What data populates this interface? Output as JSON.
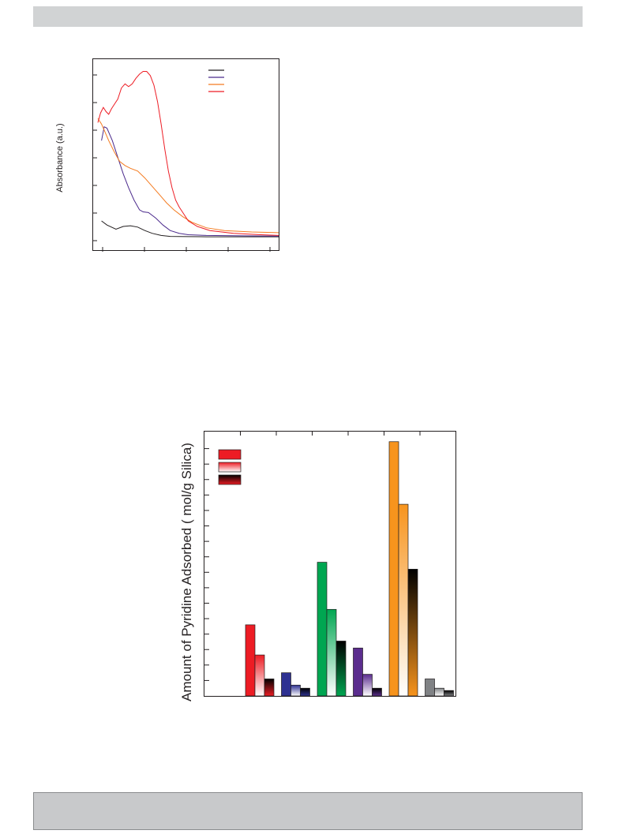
{
  "colors": {
    "axis": "#231f20",
    "header_bar": "#d1d3d4",
    "footer_box": "#c8c9cb"
  },
  "chart_data": [
    {
      "type": "line",
      "ylabel": "Absorbance (a.u.)",
      "xlabel": "",
      "title": "",
      "x_ticks_count": 5,
      "y_ticks_count": 7,
      "legend_placement": "top-right",
      "series": [
        {
          "color": "#231f20",
          "points": [
            [
              0.02,
              0.12
            ],
            [
              0.05,
              0.09
            ],
            [
              0.1,
              0.06
            ],
            [
              0.14,
              0.08
            ],
            [
              0.18,
              0.085
            ],
            [
              0.22,
              0.075
            ],
            [
              0.26,
              0.05
            ],
            [
              0.3,
              0.03
            ],
            [
              0.35,
              0.015
            ],
            [
              0.4,
              0.008
            ],
            [
              0.5,
              0.006
            ],
            [
              0.6,
              0.005
            ],
            [
              0.8,
              0.005
            ],
            [
              1.0,
              0.005
            ]
          ]
        },
        {
          "color": "#4b2a8c",
          "points": [
            [
              0.02,
              0.7
            ],
            [
              0.035,
              0.8
            ],
            [
              0.05,
              0.79
            ],
            [
              0.08,
              0.7
            ],
            [
              0.11,
              0.58
            ],
            [
              0.14,
              0.46
            ],
            [
              0.17,
              0.36
            ],
            [
              0.2,
              0.27
            ],
            [
              0.23,
              0.2
            ],
            [
              0.25,
              0.185
            ],
            [
              0.28,
              0.18
            ],
            [
              0.32,
              0.14
            ],
            [
              0.36,
              0.09
            ],
            [
              0.4,
              0.05
            ],
            [
              0.45,
              0.03
            ],
            [
              0.5,
              0.02
            ],
            [
              0.6,
              0.015
            ],
            [
              0.8,
              0.012
            ],
            [
              1.0,
              0.01
            ]
          ]
        },
        {
          "color": "#f47b20",
          "points": [
            [
              0.0,
              0.86
            ],
            [
              0.02,
              0.82
            ],
            [
              0.04,
              0.76
            ],
            [
              0.06,
              0.7
            ],
            [
              0.09,
              0.62
            ],
            [
              0.12,
              0.55
            ],
            [
              0.15,
              0.52
            ],
            [
              0.18,
              0.5
            ],
            [
              0.22,
              0.48
            ],
            [
              0.26,
              0.43
            ],
            [
              0.3,
              0.37
            ],
            [
              0.34,
              0.31
            ],
            [
              0.38,
              0.25
            ],
            [
              0.42,
              0.2
            ],
            [
              0.47,
              0.15
            ],
            [
              0.52,
              0.11
            ],
            [
              0.6,
              0.07
            ],
            [
              0.7,
              0.05
            ],
            [
              0.85,
              0.04
            ],
            [
              1.0,
              0.035
            ]
          ]
        },
        {
          "color": "#ed1c24",
          "points": [
            [
              0.0,
              0.83
            ],
            [
              0.015,
              0.9
            ],
            [
              0.03,
              0.94
            ],
            [
              0.045,
              0.91
            ],
            [
              0.06,
              0.89
            ],
            [
              0.075,
              0.93
            ],
            [
              0.09,
              0.96
            ],
            [
              0.11,
              1.0
            ],
            [
              0.13,
              1.08
            ],
            [
              0.15,
              1.11
            ],
            [
              0.17,
              1.09
            ],
            [
              0.19,
              1.11
            ],
            [
              0.21,
              1.15
            ],
            [
              0.23,
              1.18
            ],
            [
              0.25,
              1.2
            ],
            [
              0.27,
              1.2
            ],
            [
              0.29,
              1.17
            ],
            [
              0.31,
              1.1
            ],
            [
              0.33,
              0.98
            ],
            [
              0.35,
              0.82
            ],
            [
              0.37,
              0.64
            ],
            [
              0.39,
              0.48
            ],
            [
              0.41,
              0.36
            ],
            [
              0.43,
              0.27
            ],
            [
              0.45,
              0.22
            ],
            [
              0.47,
              0.18
            ],
            [
              0.5,
              0.12
            ],
            [
              0.55,
              0.08
            ],
            [
              0.62,
              0.05
            ],
            [
              0.75,
              0.03
            ],
            [
              0.9,
              0.02
            ],
            [
              1.0,
              0.015
            ]
          ]
        }
      ],
      "legend": [
        {
          "color": "#231f20"
        },
        {
          "color": "#4b2a8c"
        },
        {
          "color": "#f47b20"
        },
        {
          "color": "#ed1c24"
        }
      ]
    },
    {
      "type": "bar",
      "ylabel": "Amount of Pyridine Adsorbed (  mol/g Silica)",
      "xlabel": "",
      "title": "",
      "ylim": [
        0,
        17
      ],
      "y_ticks_count": 17,
      "legend_placement": "top-left",
      "legend": [
        {
          "style": "solid",
          "color": "#ed1c24"
        },
        {
          "style": "gradient-light",
          "color": "#ed1c24"
        },
        {
          "style": "gradient-dark",
          "color": "#ed1c24"
        }
      ],
      "groups": [
        {
          "color": "#ed1c24",
          "values": [
            4.6,
            2.65,
            1.1
          ]
        },
        {
          "color": "#2e3192",
          "values": [
            1.5,
            0.7,
            0.5
          ]
        },
        {
          "color": "#00a651",
          "values": [
            8.65,
            5.6,
            3.55
          ]
        },
        {
          "color": "#5b2d8e",
          "values": [
            3.1,
            1.4,
            0.5
          ]
        },
        {
          "color": "#f7941d",
          "values": [
            16.45,
            12.4,
            8.2
          ]
        },
        {
          "color": "#808285",
          "values": [
            1.1,
            0.5,
            0.35
          ]
        }
      ]
    }
  ]
}
